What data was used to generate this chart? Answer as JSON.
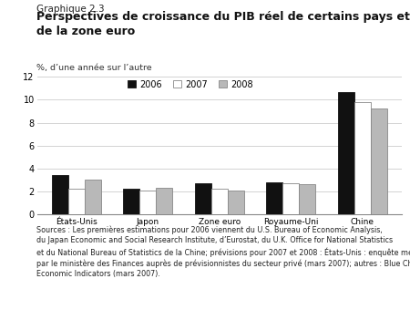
{
  "title_small": "Graphique 2.3",
  "title_large": "Perspectives de croissance du PIB réel de certains pays et\nde la zone euro",
  "ylabel": "%, d’une année sur l’autre",
  "ylim": [
    0,
    12
  ],
  "yticks": [
    0,
    2,
    4,
    6,
    8,
    10,
    12
  ],
  "categories": [
    "États-Unis",
    "Japon",
    "Zone euro",
    "Royaume-Uni",
    "Chine"
  ],
  "series": {
    "2006": [
      3.4,
      2.2,
      2.7,
      2.8,
      10.7
    ],
    "2007": [
      2.2,
      2.1,
      2.2,
      2.7,
      9.8
    ],
    "2008": [
      3.0,
      2.3,
      2.1,
      2.6,
      9.2
    ]
  },
  "bar_colors": {
    "2006": "#111111",
    "2007": "#ffffff",
    "2008": "#b8b8b8"
  },
  "bar_edgecolors": {
    "2006": "#111111",
    "2007": "#888888",
    "2008": "#888888"
  },
  "legend_labels": [
    "2006",
    "2007",
    "2008"
  ],
  "source_text_normal": "Sources : Les premières estimations pour 2006 viennent du U.S. Bureau of Economic Analysis,\ndu Japan Economic and Social Research Institute, d’Eurostat, du U.K. Office for National Statistics\net du National Bureau of Statistics de la Chine; prévisions pour 2007 et 2008 : États-Unis : enquête menée\npar le ministère des Finances auprès de prévisionnistes du secteur privé (mars 2007); autres : ",
  "source_text_italic": "Blue Chip\nEconomic Indicators",
  "source_text_end": " (mars 2007).",
  "background_color": "#ffffff",
  "grid_color": "#cccccc"
}
